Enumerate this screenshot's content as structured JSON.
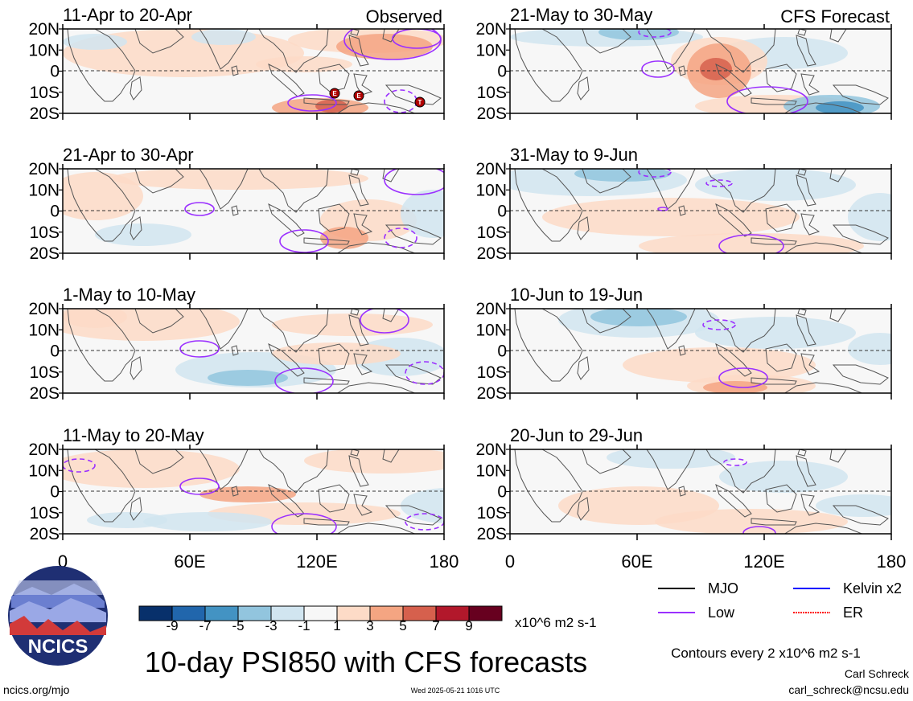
{
  "panels": [
    {
      "title": "11-Apr to 20-Apr",
      "tag": "Observed"
    },
    {
      "title": "21-Apr to 30-Apr",
      "tag": ""
    },
    {
      "title": "1-May to 10-May",
      "tag": ""
    },
    {
      "title": "11-May to 20-May",
      "tag": ""
    },
    {
      "title": "21-May to 30-May",
      "tag": "CFS Forecast"
    },
    {
      "title": "31-May to 9-Jun",
      "tag": ""
    },
    {
      "title": "10-Jun to 19-Jun",
      "tag": ""
    },
    {
      "title": "20-Jun to 29-Jun",
      "tag": ""
    }
  ],
  "lat_labels": [
    "20N",
    "10N",
    "0",
    "10S",
    "20S"
  ],
  "lon_labels": [
    "0",
    "60E",
    "120E",
    "180"
  ],
  "colorbar": {
    "colors": [
      "#08306b",
      "#2166ac",
      "#4393c3",
      "#92c5de",
      "#d1e5f0",
      "#f7f7f7",
      "#fddbc7",
      "#f4a582",
      "#d6604d",
      "#b2182b",
      "#67001f"
    ],
    "tick_labels": [
      "-9",
      "-7",
      "-5",
      "-3",
      "-1",
      "1",
      "3",
      "5",
      "7",
      "9"
    ],
    "units": "x10^6 m2 s-1"
  },
  "legend": [
    {
      "label": "MJO",
      "color": "#000000",
      "dash": "solid"
    },
    {
      "label": "Kelvin x2",
      "color": "#0000ff",
      "dash": "solid"
    },
    {
      "label": "Low",
      "color": "#9b30ff",
      "dash": "solid"
    },
    {
      "label": "ER",
      "color": "#ff0000",
      "dash": "dotted"
    }
  ],
  "logo_text": "NCICS",
  "main_title": "10-day PSI850 with CFS forecasts",
  "contour_note": "Contours every 2 x10^6 m2 s-1",
  "author": "Carl Schreck",
  "email": "carl_schreck@ncsu.edu",
  "website": "ncics.org/mjo",
  "timestamp": "Wed 2025-05-21 1016 UTC",
  "storm_markers": [
    "E",
    "E",
    "T"
  ]
}
